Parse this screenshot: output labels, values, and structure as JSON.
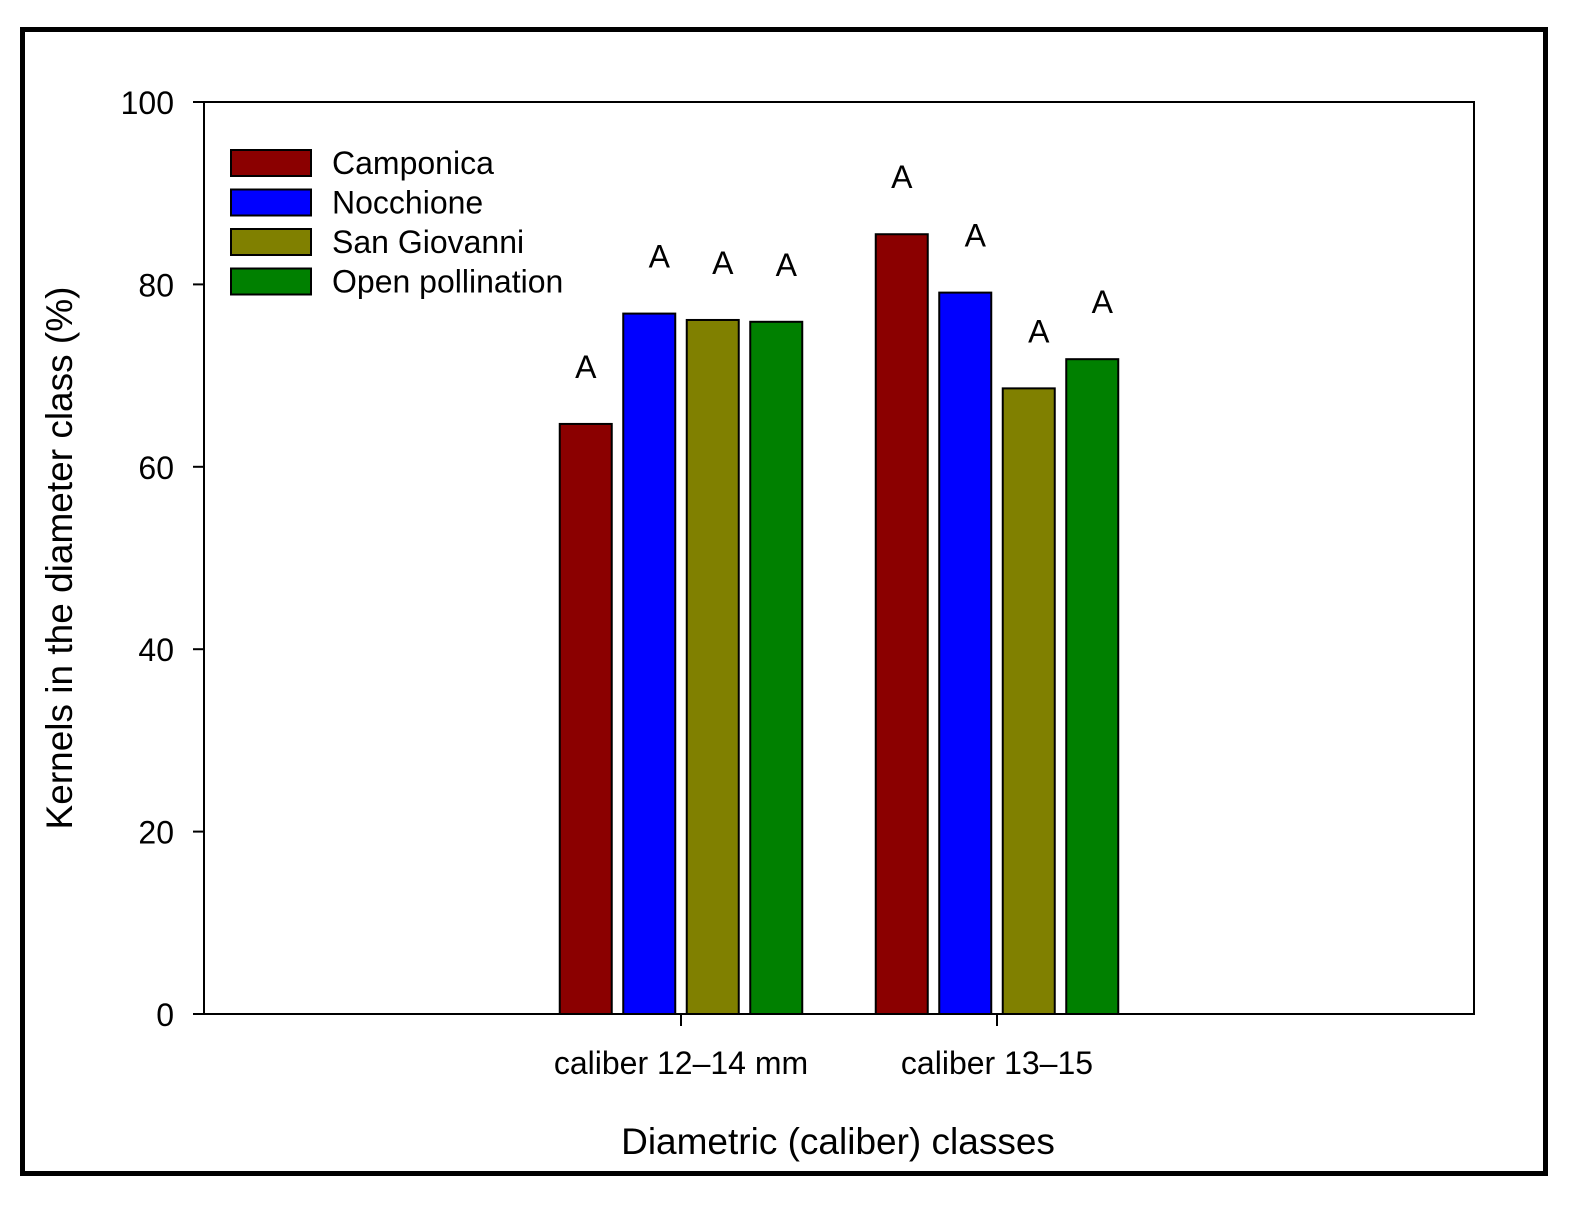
{
  "chart_data": {
    "type": "bar",
    "title": "",
    "xlabel": "Diametric (caliber) classes",
    "ylabel": "Kernels in the diameter class (%)",
    "ylim": [
      0,
      100
    ],
    "yticks": [
      "0",
      "20",
      "40",
      "60",
      "80",
      "100"
    ],
    "categories": [
      "caliber 12–14 mm",
      "caliber 13–15"
    ],
    "series": [
      {
        "name": "Camponica",
        "color": "#8b0000",
        "values": [
          64.7,
          85.5
        ],
        "labels": [
          "A",
          "A"
        ]
      },
      {
        "name": "Nocchione",
        "color": "#0000ff",
        "values": [
          76.8,
          79.1
        ],
        "labels": [
          "A",
          "A"
        ]
      },
      {
        "name": "San Giovanni",
        "color": "#808000",
        "values": [
          76.1,
          68.6
        ],
        "labels": [
          "A",
          "A"
        ]
      },
      {
        "name": "Open pollination",
        "color": "#008000",
        "values": [
          75.9,
          71.8
        ],
        "labels": [
          "A",
          "A"
        ]
      }
    ],
    "legend_position": "top-left",
    "grid": false
  }
}
